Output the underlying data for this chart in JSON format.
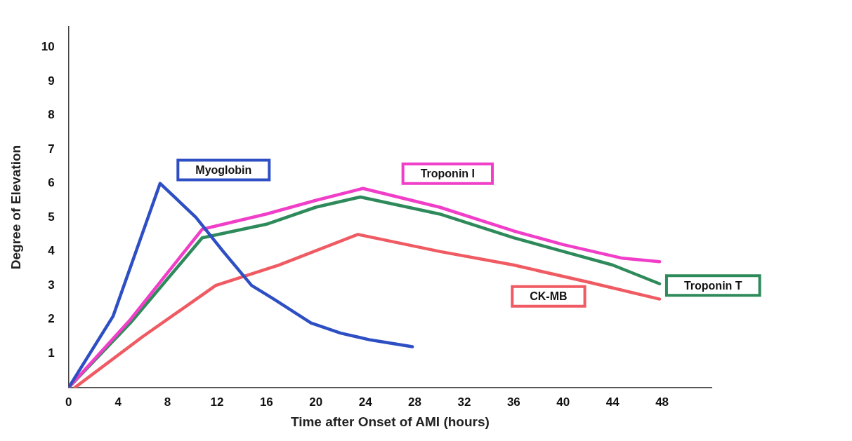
{
  "chart_data": {
    "type": "line",
    "xlabel": "Time after Onset of AMI (hours)",
    "ylabel": "Degree of Elevation",
    "xlim": [
      0,
      52
    ],
    "xticks": [
      0,
      4,
      8,
      12,
      16,
      20,
      24,
      28,
      32,
      36,
      40,
      44,
      48
    ],
    "ylim": [
      0,
      10.6
    ],
    "yticks": [
      1,
      2,
      3,
      4,
      5,
      6,
      7,
      8,
      9,
      10
    ],
    "grid": false,
    "legend": false,
    "marker": "none",
    "line_style": "solid",
    "series": [
      {
        "name": "Myoglobin",
        "color": "#2e4fc4",
        "x": [
          0,
          3.6,
          7.4,
          10.3,
          12.5,
          14.8,
          16.6,
          19.6,
          22,
          24.4,
          27.8
        ],
        "values": [
          0,
          2.1,
          6,
          5,
          4,
          3,
          2.6,
          1.9,
          1.6,
          1.4,
          1.2
        ]
      },
      {
        "name": "Troponin I",
        "color": "#f03ec8",
        "x": [
          0,
          5,
          10.8,
          16,
          20,
          23.8,
          30,
          36,
          40,
          44.8,
          47.8
        ],
        "values": [
          0,
          2,
          4.65,
          5.1,
          5.5,
          5.85,
          5.3,
          4.6,
          4.2,
          3.8,
          3.7
        ]
      },
      {
        "name": "CK-MB",
        "color": "#f05a62",
        "x": [
          0.5,
          6,
          11.9,
          17,
          23.4,
          30,
          36,
          42,
          47.8
        ],
        "values": [
          0,
          1.5,
          3,
          3.6,
          4.5,
          4,
          3.6,
          3.1,
          2.6
        ]
      },
      {
        "name": "Troponin T",
        "color": "#2e8a5a",
        "x": [
          0,
          5,
          10.8,
          16,
          20,
          23.6,
          30,
          36,
          40,
          44,
          47.8
        ],
        "values": [
          0,
          1.9,
          4.4,
          4.8,
          5.3,
          5.6,
          5.1,
          4.4,
          4,
          3.6,
          3.05
        ]
      }
    ]
  }
}
